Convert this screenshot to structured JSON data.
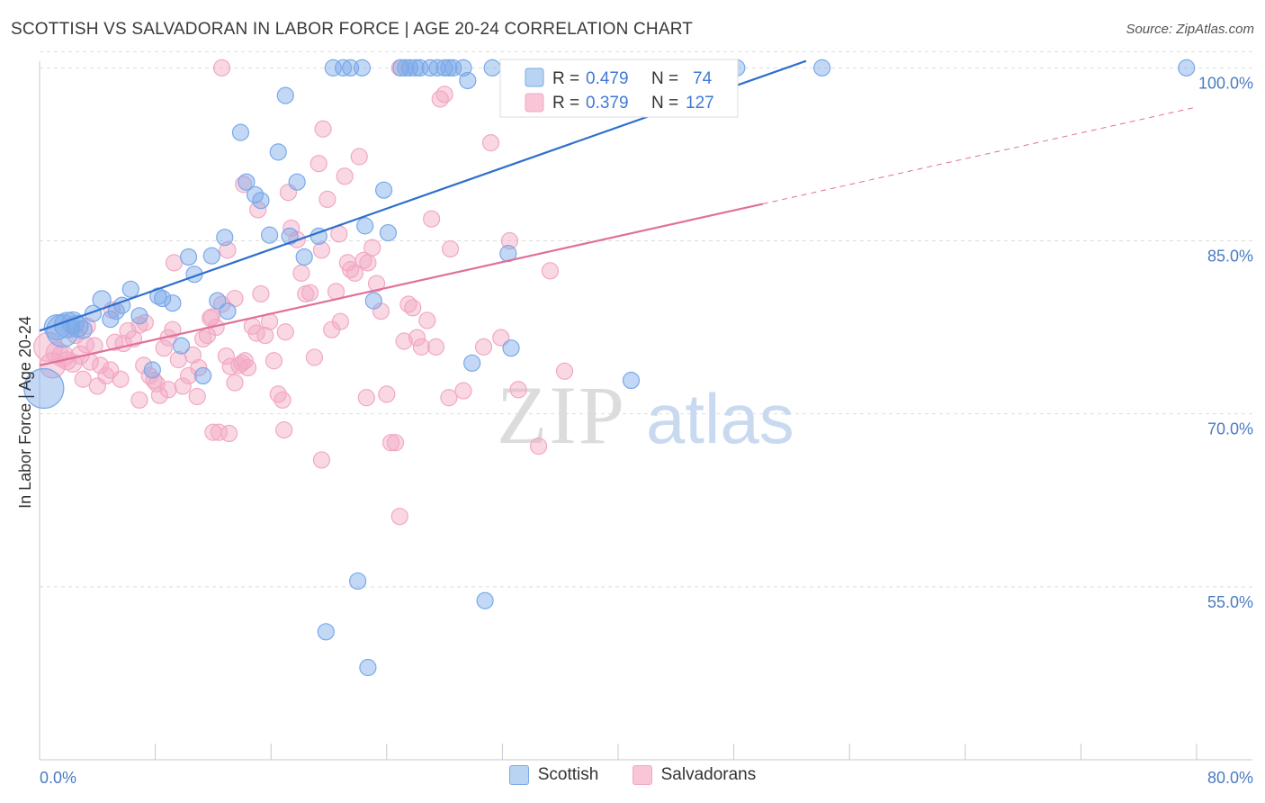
{
  "title": "SCOTTISH VS SALVADORAN IN LABOR FORCE | AGE 20-24 CORRELATION CHART",
  "source": "Source: ZipAtlas.com",
  "watermark": {
    "zip": "ZIP",
    "atlas": "atlas"
  },
  "chart_data": {
    "type": "scatter",
    "xlabel": "",
    "ylabel": "In Labor Force | Age 20-24",
    "xlim": [
      0,
      80
    ],
    "ylim": [
      40,
      101.2
    ],
    "x_tick_labels": [
      {
        "value": 0,
        "label": "0.0%"
      },
      {
        "value": 80,
        "label": "80.0%"
      }
    ],
    "y_tick_labels": [
      {
        "value": 100,
        "label": "100.0%"
      },
      {
        "value": 85,
        "label": "85.0%"
      },
      {
        "value": 70,
        "label": "70.0%"
      },
      {
        "value": 55,
        "label": "55.0%"
      }
    ],
    "legend": {
      "entries": [
        {
          "r_label": "R =",
          "r_value": "0.479",
          "n_label": "N =",
          "n_value": "74"
        },
        {
          "r_label": "R =",
          "r_value": "0.379",
          "n_label": "N =",
          "n_value": "127"
        }
      ]
    },
    "series": [
      {
        "name": "Scottish",
        "color": "#7aa9e8",
        "line_color": "#2f6fcc",
        "trend": {
          "x0": 0,
          "y0": 77.2,
          "x1": 53,
          "y1": 100.6,
          "dashed_to_x": null
        },
        "points": [
          [
            0.3,
            72.2,
            22
          ],
          [
            1.2,
            77.5,
            14
          ],
          [
            1.6,
            77.2,
            18
          ],
          [
            1.9,
            77.7,
            14
          ],
          [
            2.3,
            77.9,
            12
          ],
          [
            2.6,
            77.6,
            12
          ],
          [
            3.0,
            77.3,
            10
          ],
          [
            4.3,
            79.9,
            10
          ],
          [
            3.7,
            78.7,
            9
          ],
          [
            4.9,
            78.2,
            9
          ],
          [
            5.3,
            78.9,
            9
          ],
          [
            5.7,
            79.4,
            9
          ],
          [
            6.3,
            80.8,
            9
          ],
          [
            6.9,
            78.5,
            9
          ],
          [
            8.2,
            80.2,
            9
          ],
          [
            8.5,
            80.0,
            9
          ],
          [
            9.2,
            79.6,
            9
          ],
          [
            7.8,
            73.8,
            9
          ],
          [
            10.3,
            83.6,
            9
          ],
          [
            10.7,
            82.1,
            9
          ],
          [
            11.9,
            83.7,
            9
          ],
          [
            12.3,
            79.8,
            9
          ],
          [
            13.0,
            78.9,
            9
          ],
          [
            12.8,
            85.3,
            9
          ],
          [
            9.8,
            75.9,
            9
          ],
          [
            11.3,
            73.3,
            9
          ],
          [
            13.9,
            94.4,
            9
          ],
          [
            14.3,
            90.1,
            9
          ],
          [
            14.9,
            89.0,
            9
          ],
          [
            15.3,
            88.5,
            9
          ],
          [
            15.9,
            85.5,
            9
          ],
          [
            16.5,
            92.7,
            9
          ],
          [
            17.0,
            97.6,
            9
          ],
          [
            17.3,
            85.4,
            9
          ],
          [
            17.8,
            90.1,
            9
          ],
          [
            18.3,
            83.6,
            9
          ],
          [
            19.3,
            85.4,
            9
          ],
          [
            20.3,
            100.0,
            9
          ],
          [
            21.0,
            100.0,
            9
          ],
          [
            21.5,
            100.0,
            9
          ],
          [
            22.3,
            100.0,
            9
          ],
          [
            22.5,
            86.3,
            9
          ],
          [
            23.1,
            79.8,
            9
          ],
          [
            23.8,
            89.4,
            9
          ],
          [
            24.1,
            85.7,
            9
          ],
          [
            25.0,
            100.0,
            9
          ],
          [
            25.3,
            100.0,
            9
          ],
          [
            25.6,
            100.0,
            9
          ],
          [
            26.0,
            100.0,
            9
          ],
          [
            26.3,
            100.0,
            9
          ],
          [
            27.0,
            100.0,
            9
          ],
          [
            27.5,
            100.0,
            9
          ],
          [
            28.0,
            100.0,
            9
          ],
          [
            28.3,
            100.0,
            9
          ],
          [
            28.6,
            100.0,
            9
          ],
          [
            29.3,
            100.0,
            9
          ],
          [
            29.6,
            98.9,
            9
          ],
          [
            29.9,
            74.4,
            9
          ],
          [
            31.3,
            100.0,
            9
          ],
          [
            32.4,
            83.9,
            9
          ],
          [
            32.6,
            75.7,
            9
          ],
          [
            32.9,
            100.0,
            9
          ],
          [
            33.3,
            100.0,
            9
          ],
          [
            35.0,
            100.0,
            9
          ],
          [
            37.2,
            100.0,
            9
          ],
          [
            38.3,
            100.0,
            9
          ],
          [
            40.9,
            72.9,
            9
          ],
          [
            48.2,
            100.0,
            9
          ],
          [
            54.1,
            100.0,
            9
          ],
          [
            79.3,
            100.0,
            9
          ],
          [
            22.0,
            55.5,
            9
          ],
          [
            30.8,
            53.8,
            9
          ],
          [
            19.8,
            51.1,
            9
          ],
          [
            22.7,
            48.0,
            9
          ]
        ]
      },
      {
        "name": "Salvadorans",
        "color": "#f2a8c3",
        "line_color": "#e0709a",
        "trend": {
          "x0": 0,
          "y0": 74.2,
          "x1": 50,
          "y1": 88.2,
          "dashed_to_x": 80,
          "dashed_to_y": 96.6
        },
        "points": [
          [
            0.6,
            75.8,
            16
          ],
          [
            0.9,
            74.2,
            14
          ],
          [
            1.2,
            75.3,
            12
          ],
          [
            1.6,
            75.0,
            12
          ],
          [
            1.9,
            74.6,
            10
          ],
          [
            2.3,
            74.4,
            10
          ],
          [
            2.8,
            75.1,
            10
          ],
          [
            3.2,
            76.0,
            9
          ],
          [
            3.5,
            74.5,
            9
          ],
          [
            3.8,
            75.9,
            9
          ],
          [
            4.2,
            74.2,
            9
          ],
          [
            4.6,
            73.3,
            9
          ],
          [
            4.9,
            73.8,
            9
          ],
          [
            5.2,
            76.2,
            9
          ],
          [
            5.8,
            76.1,
            9
          ],
          [
            5.6,
            73.0,
            9
          ],
          [
            6.1,
            77.2,
            9
          ],
          [
            6.5,
            76.5,
            9
          ],
          [
            6.9,
            77.7,
            9
          ],
          [
            7.2,
            74.2,
            9
          ],
          [
            7.6,
            73.3,
            9
          ],
          [
            7.9,
            72.9,
            9
          ],
          [
            8.3,
            71.6,
            9
          ],
          [
            8.6,
            75.7,
            9
          ],
          [
            8.9,
            76.6,
            9
          ],
          [
            9.2,
            77.3,
            9
          ],
          [
            9.3,
            83.1,
            9
          ],
          [
            9.6,
            74.7,
            9
          ],
          [
            9.9,
            72.4,
            9
          ],
          [
            10.3,
            73.3,
            9
          ],
          [
            10.6,
            75.1,
            9
          ],
          [
            11.0,
            74.0,
            9
          ],
          [
            11.3,
            76.5,
            9
          ],
          [
            11.6,
            76.8,
            9
          ],
          [
            11.9,
            78.4,
            9
          ],
          [
            12.2,
            77.5,
            9
          ],
          [
            12.6,
            79.5,
            9
          ],
          [
            12.9,
            75.0,
            9
          ],
          [
            13.2,
            74.1,
            9
          ],
          [
            13.5,
            72.7,
            9
          ],
          [
            13.8,
            74.2,
            9
          ],
          [
            14.2,
            74.6,
            9
          ],
          [
            14.4,
            74.0,
            9
          ],
          [
            14.7,
            77.6,
            9
          ],
          [
            15.0,
            77.0,
            9
          ],
          [
            15.3,
            80.4,
            9
          ],
          [
            15.6,
            76.8,
            9
          ],
          [
            15.9,
            78.0,
            9
          ],
          [
            16.2,
            74.6,
            9
          ],
          [
            16.5,
            71.7,
            9
          ],
          [
            16.8,
            71.2,
            9
          ],
          [
            17.0,
            77.1,
            9
          ],
          [
            17.4,
            86.1,
            9
          ],
          [
            17.8,
            85.1,
            9
          ],
          [
            18.1,
            82.2,
            9
          ],
          [
            18.4,
            80.4,
            9
          ],
          [
            18.7,
            80.5,
            9
          ],
          [
            19.0,
            74.9,
            9
          ],
          [
            19.3,
            91.7,
            9
          ],
          [
            19.6,
            94.7,
            9
          ],
          [
            19.9,
            88.6,
            9
          ],
          [
            20.2,
            77.3,
            9
          ],
          [
            20.5,
            80.6,
            9
          ],
          [
            20.8,
            78.0,
            9
          ],
          [
            21.1,
            90.6,
            9
          ],
          [
            21.5,
            82.5,
            9
          ],
          [
            21.8,
            82.2,
            9
          ],
          [
            22.1,
            92.3,
            9
          ],
          [
            22.4,
            83.3,
            9
          ],
          [
            22.7,
            83.1,
            9
          ],
          [
            23.0,
            84.4,
            9
          ],
          [
            23.3,
            81.3,
            9
          ],
          [
            23.6,
            78.9,
            9
          ],
          [
            24.0,
            71.7,
            9
          ],
          [
            24.3,
            67.5,
            9
          ],
          [
            24.6,
            67.5,
            9
          ],
          [
            24.9,
            61.1,
            9
          ],
          [
            25.2,
            76.3,
            9
          ],
          [
            25.5,
            79.5,
            9
          ],
          [
            25.8,
            79.2,
            9
          ],
          [
            26.1,
            76.6,
            9
          ],
          [
            26.4,
            75.8,
            9
          ],
          [
            26.8,
            78.1,
            9
          ],
          [
            27.1,
            86.9,
            9
          ],
          [
            27.4,
            75.8,
            9
          ],
          [
            27.7,
            97.3,
            9
          ],
          [
            28.0,
            97.7,
            9
          ],
          [
            28.3,
            71.4,
            9
          ],
          [
            29.3,
            72.0,
            9
          ],
          [
            30.7,
            75.8,
            9
          ],
          [
            31.2,
            93.5,
            9
          ],
          [
            31.9,
            76.6,
            9
          ],
          [
            32.5,
            85.0,
            9
          ],
          [
            33.1,
            72.1,
            9
          ],
          [
            34.5,
            67.2,
            9
          ],
          [
            35.3,
            82.4,
            9
          ],
          [
            36.3,
            73.7,
            9
          ],
          [
            36.7,
            97.8,
            9
          ],
          [
            12.4,
            68.4,
            9
          ],
          [
            13.1,
            68.3,
            9
          ],
          [
            12.0,
            68.4,
            9
          ],
          [
            16.9,
            68.6,
            9
          ],
          [
            19.5,
            66.0,
            9
          ],
          [
            3.3,
            77.6,
            9
          ],
          [
            2.5,
            76.8,
            9
          ],
          [
            14.1,
            89.9,
            9
          ],
          [
            15.1,
            87.7,
            9
          ],
          [
            13.0,
            84.2,
            9
          ],
          [
            17.2,
            89.2,
            9
          ],
          [
            19.5,
            84.2,
            9
          ],
          [
            21.3,
            83.1,
            9
          ],
          [
            14.0,
            74.4,
            9
          ],
          [
            6.9,
            71.2,
            9
          ],
          [
            8.9,
            72.1,
            9
          ],
          [
            10.9,
            71.5,
            9
          ],
          [
            13.5,
            80.0,
            9
          ],
          [
            12.6,
            100.0,
            9
          ],
          [
            24.9,
            100.0,
            9
          ],
          [
            28.4,
            84.3,
            9
          ],
          [
            20.7,
            85.6,
            9
          ],
          [
            22.6,
            71.4,
            9
          ],
          [
            11.8,
            78.3,
            9
          ],
          [
            7.3,
            77.9,
            9
          ],
          [
            8.1,
            72.6,
            9
          ],
          [
            5.0,
            79.0,
            9
          ],
          [
            4.0,
            72.4,
            9
          ],
          [
            3.0,
            73.0,
            9
          ]
        ]
      }
    ]
  }
}
